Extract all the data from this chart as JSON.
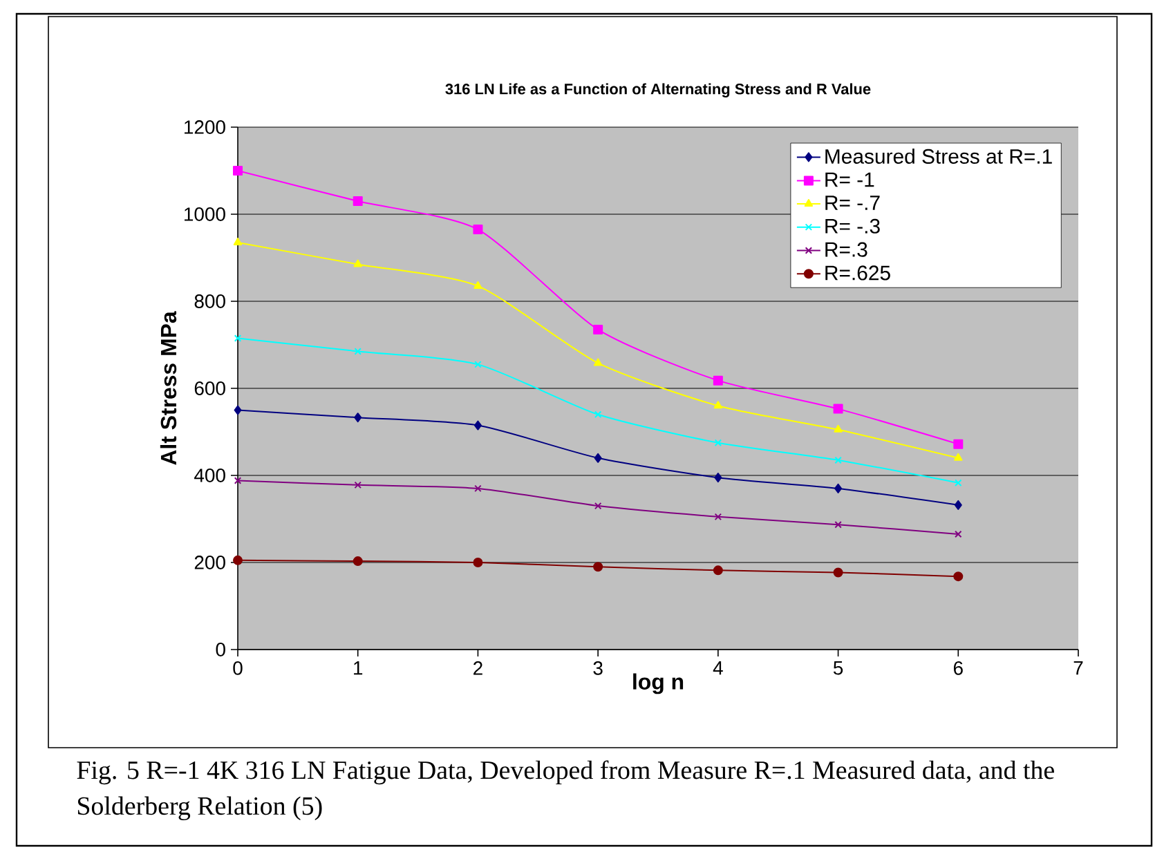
{
  "chart_data": {
    "type": "line",
    "title": "316 LN Life as a Function of Alternating Stress and R Value",
    "xlabel": "log n",
    "ylabel": "Alt Stress MPa",
    "x": [
      0,
      1,
      2,
      3,
      4,
      5,
      6
    ],
    "series": [
      {
        "name": "Measured Stress at R=.1",
        "color": "#000080",
        "marker": "diamond",
        "values": [
          550,
          533,
          515,
          440,
          395,
          370,
          332
        ]
      },
      {
        "name": "R= -1",
        "color": "#ff00ff",
        "marker": "square",
        "values": [
          1100,
          1030,
          965,
          735,
          618,
          553,
          472
        ]
      },
      {
        "name": "R= -.7",
        "color": "#ffff00",
        "marker": "triangle",
        "values": [
          935,
          885,
          835,
          658,
          560,
          505,
          440
        ]
      },
      {
        "name": "R= -.3",
        "color": "#00ffff",
        "marker": "cross",
        "values": [
          715,
          685,
          655,
          540,
          475,
          435,
          383
        ]
      },
      {
        "name": "R=.3",
        "color": "#800080",
        "marker": "cross",
        "values": [
          388,
          378,
          370,
          330,
          305,
          287,
          265
        ]
      },
      {
        "name": "R=.625",
        "color": "#800000",
        "marker": "circle",
        "values": [
          205,
          203,
          200,
          190,
          182,
          177,
          168
        ]
      }
    ],
    "xlim": [
      0,
      7
    ],
    "xticks": [
      0,
      1,
      2,
      3,
      4,
      5,
      6,
      7
    ],
    "ylim": [
      0,
      1200
    ],
    "yticks": [
      0,
      200,
      400,
      600,
      800,
      1000,
      1200
    ],
    "grid": "y",
    "legend": "top right",
    "line_style": "solid",
    "annotations": [
      "Fig. 5  R=-1 4K 316 LN Fatigue Data, Developed from Measure R=.1 Measured data, and the Solderberg Relation (5)"
    ]
  }
}
